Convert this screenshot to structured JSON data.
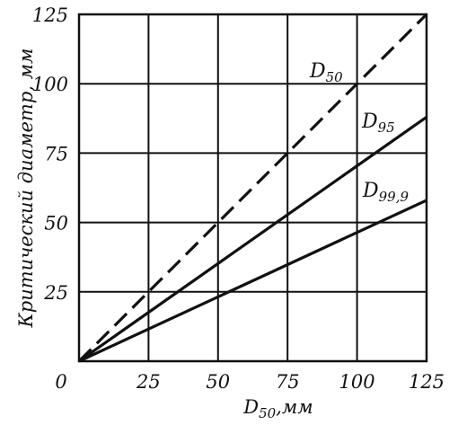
{
  "chart_data": {
    "type": "line",
    "title": "",
    "xlabel": {
      "main": "D",
      "sub": "50",
      "rest": ",мм"
    },
    "ylabel": "Критический  диаметр, мм",
    "xlim": [
      0,
      125
    ],
    "ylim": [
      0,
      125
    ],
    "x_ticks": [
      "0",
      "25",
      "50",
      "75",
      "100",
      "125"
    ],
    "y_ticks": [
      "25",
      "50",
      "75",
      "100",
      "125"
    ],
    "grid": true,
    "series": [
      {
        "name": {
          "main": "D",
          "sub": "50"
        },
        "style": "dashed",
        "x": [
          0,
          125
        ],
        "y": [
          0,
          125
        ]
      },
      {
        "name": {
          "main": "D",
          "sub": "95"
        },
        "style": "solid",
        "x": [
          0,
          125
        ],
        "y": [
          0,
          88
        ]
      },
      {
        "name": {
          "main": "D",
          "sub": "99,9"
        },
        "style": "solid",
        "x": [
          0,
          125
        ],
        "y": [
          0,
          58
        ]
      }
    ]
  }
}
